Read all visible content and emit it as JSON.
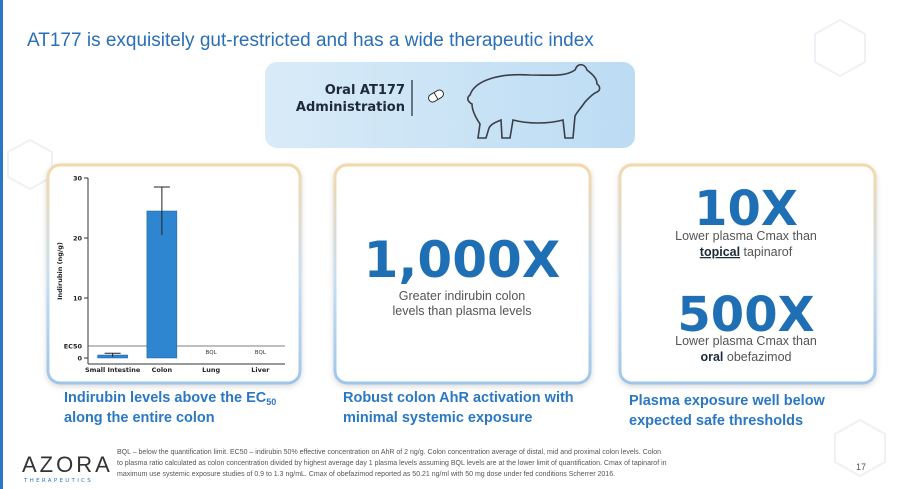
{
  "header": {
    "title": "AT177 is exquisitely gut-restricted and has a wide therapeutic index"
  },
  "banner": {
    "lines": [
      "Oral AT177",
      "Administration"
    ]
  },
  "panels": [
    {
      "caption": {
        "line1": "Indirubin levels above the EC",
        "sub": "50",
        "line2": "along the entire colon"
      },
      "chart_data": {
        "type": "bar",
        "y_label": "Indirubin (ng/g)",
        "categories": [
          "Small Intestine",
          "Colon",
          "Lung",
          "Liver"
        ],
        "values": [
          0.5,
          24.5,
          null,
          null
        ],
        "errors": [
          0.3,
          4,
          null,
          null
        ],
        "value_labels": [
          null,
          null,
          "BQL",
          "BQL"
        ],
        "color": "#2f86d0",
        "ylim": [
          -1,
          30
        ],
        "yticks": [
          0,
          10,
          20,
          30
        ],
        "reference_line": {
          "value": 2,
          "label": "EC50"
        }
      }
    },
    {
      "big": "1,000X",
      "text": [
        "Greater indirubin colon",
        "levels than plasma levels"
      ],
      "caption": [
        "Robust colon AhR activation with",
        "minimal systemic exposure"
      ]
    },
    {
      "items": [
        {
          "big": "10X",
          "line1": "Lower plasma Cmax than",
          "bold": "topical",
          "rest": " tapinarof"
        },
        {
          "big": "500X",
          "line1": "Lower plasma Cmax than",
          "bold": "oral",
          "rest": " obefazimod"
        }
      ],
      "caption": [
        "Plasma exposure well below",
        "expected safe thresholds"
      ]
    }
  ],
  "footer": {
    "logo": "AZORA",
    "logo_sub": "THERAPEUTICS",
    "notes": [
      "BQL – below the quantification limit.  EC50 – indirubin 50% effective concentration on AhR of 2 ng/g.  Colon concentration average of distal, mid and proximal colon levels.  Colon",
      "to plasma ratio calculated as colon concentration divided by highest average day 1 plasma levels assuming BQL levels are at the lower limit of quantification. Cmax of tapinarof in",
      "maximum use systemic exposure studies of 0.9 to 1.3 ng/mL. Cmax of obefazimod reported as 50.21 ng/ml with 50 mg dose under fed conditions Scherrer 2016."
    ],
    "page": "17"
  }
}
